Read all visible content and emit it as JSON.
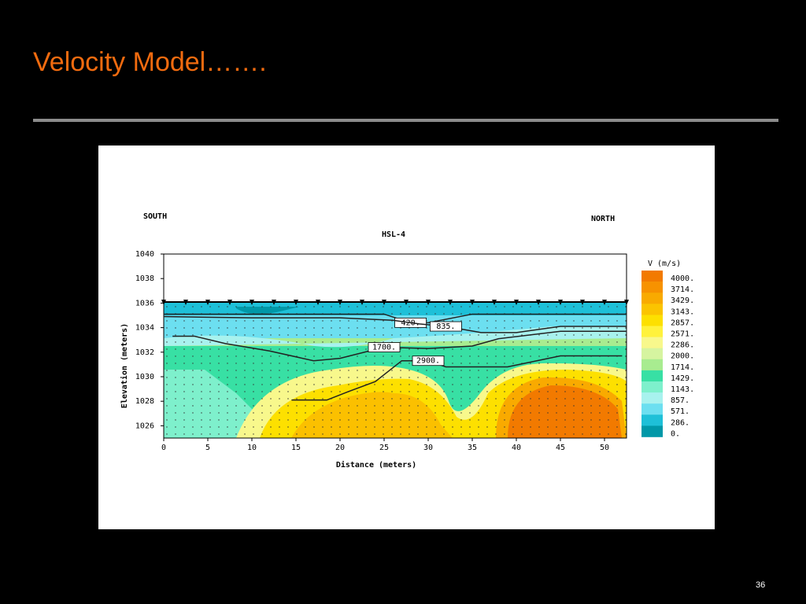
{
  "slide": {
    "title": "Velocity Model…….",
    "page_number": "36"
  },
  "chart_data": {
    "type": "contour",
    "title": "HSL-4",
    "annotations": [
      "SOUTH",
      "NORTH"
    ],
    "x_label": "Distance (meters)",
    "y_label": "Elevation (meters)",
    "xlim": [
      0,
      52.5
    ],
    "ylim": [
      1025,
      1040
    ],
    "xticks": [
      0,
      5,
      10,
      15,
      20,
      25,
      30,
      35,
      40,
      45,
      50
    ],
    "yticks": [
      1026,
      1028,
      1030,
      1032,
      1034,
      1036,
      1038,
      1040
    ],
    "colorbar": {
      "label": "V (m/s)",
      "levels": [
        4000,
        3714,
        3429,
        3143,
        2857,
        2571,
        2286,
        2000,
        1714,
        1429,
        1143,
        857,
        571,
        286,
        0
      ],
      "value_labels": [
        "4000.",
        "3714.",
        "3429.",
        "3143.",
        "2857.",
        "2571.",
        "2286.",
        "2000.",
        "1714.",
        "1429.",
        "1143.",
        "857.",
        "571.",
        "286.",
        "0."
      ],
      "colors": [
        "#f27a00",
        "#f79200",
        "#f9aa00",
        "#fbc400",
        "#fde000",
        "#fff23c",
        "#f8f88c",
        "#d6f4a0",
        "#a8ec90",
        "#38e0a4",
        "#7ef0cc",
        "#a8f2ee",
        "#6cdff0",
        "#1ec0d8",
        "#0098a8"
      ]
    },
    "contours": [
      {
        "value": 420,
        "label": "420.",
        "x": [
          0,
          15,
          25,
          28,
          30,
          35,
          52.5
        ],
        "y": [
          1035.1,
          1035.1,
          1035.1,
          1034.4,
          1034.4,
          1035.1,
          1035.1
        ]
      },
      {
        "value": 835,
        "label": "835.",
        "x": [
          0,
          10,
          20,
          26,
          29,
          32,
          36,
          40,
          45,
          52.5
        ],
        "y": [
          1034.9,
          1034.8,
          1034.8,
          1034.6,
          1034.3,
          1034.1,
          1033.6,
          1033.6,
          1034.1,
          1034.1
        ]
      },
      {
        "value": 1700,
        "label": "1700.",
        "x": [
          1,
          3.5,
          7,
          12,
          17,
          20,
          25,
          30,
          35,
          38,
          45,
          52.5
        ],
        "y": [
          1033.3,
          1033.3,
          1032.7,
          1032.1,
          1031.3,
          1031.5,
          1032.4,
          1032.3,
          1032.5,
          1033.1,
          1033.7,
          1033.7
        ]
      },
      {
        "value": 2900,
        "label": "2900.",
        "x": [
          14.5,
          18.5,
          21,
          24,
          27,
          30,
          32,
          39,
          45,
          52
        ],
        "y": [
          1028.1,
          1028.1,
          1028.8,
          1029.6,
          1031.3,
          1031.3,
          1030.8,
          1030.8,
          1031.7,
          1031.7
        ]
      }
    ]
  }
}
